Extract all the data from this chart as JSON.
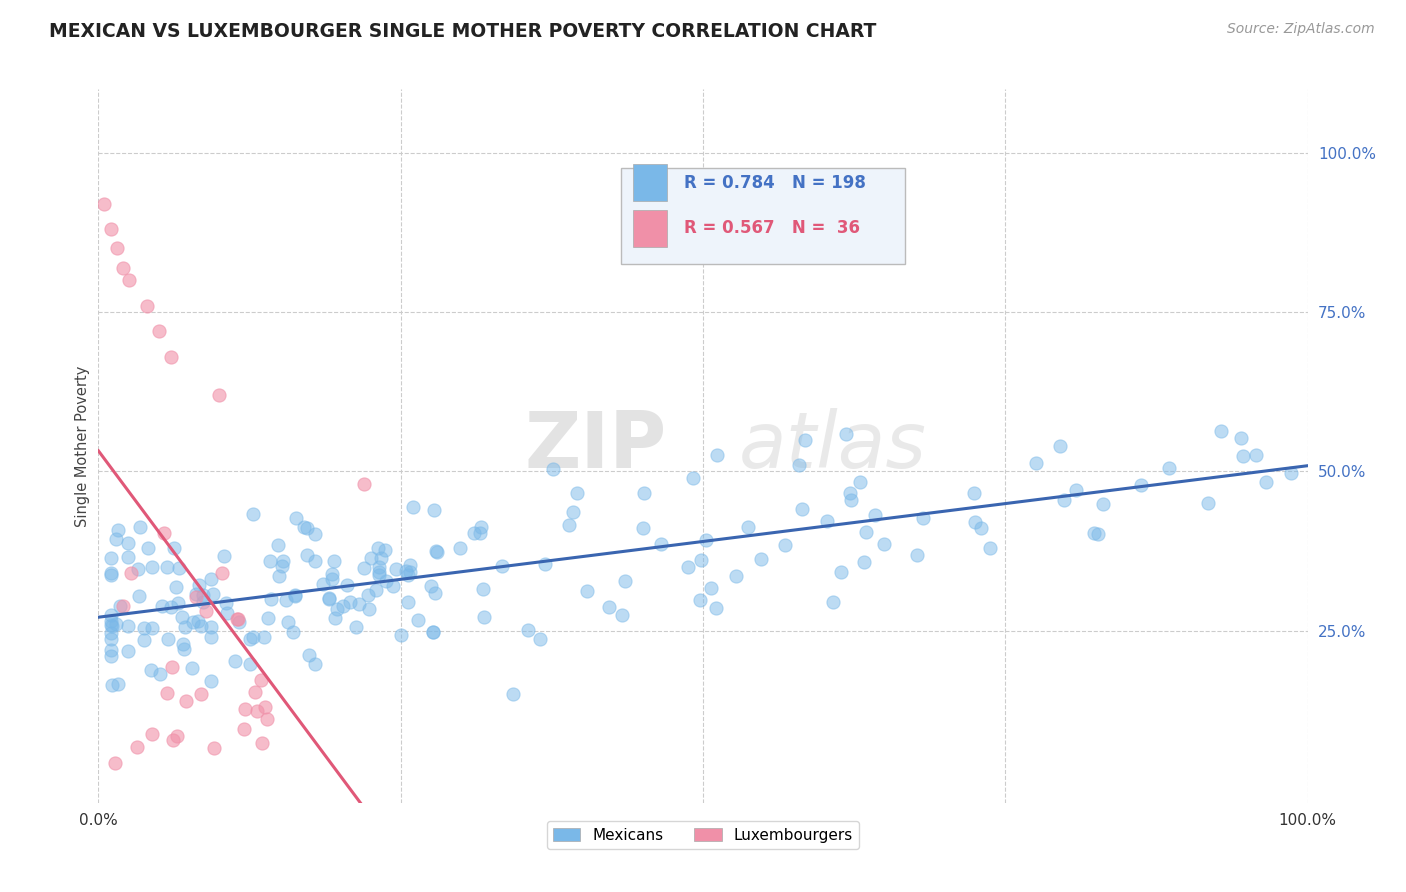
{
  "title": "MEXICAN VS LUXEMBOURGER SINGLE MOTHER POVERTY CORRELATION CHART",
  "source": "Source: ZipAtlas.com",
  "ylabel": "Single Mother Poverty",
  "xlim": [
    0.0,
    1.0
  ],
  "ylim": [
    -0.02,
    1.1
  ],
  "y_tick_vals": [
    0.25,
    0.5,
    0.75,
    1.0
  ],
  "y_tick_labels": [
    "25.0%",
    "50.0%",
    "75.0%",
    "100.0%"
  ],
  "stat_box": {
    "blue_R": "0.784",
    "blue_N": "198",
    "pink_R": "0.567",
    "pink_N": " 36",
    "text_blue": "#4472C4",
    "text_pink": "#E05878",
    "box_facecolor": "#EEF4FB",
    "box_edgecolor": "#BBBBBB"
  },
  "watermark": "ZIPatlas",
  "background_color": "#FFFFFF",
  "grid_color": "#CCCCCC",
  "scatter_blue_color": "#7AB8E8",
  "scatter_pink_color": "#F090A8",
  "line_blue_color": "#3A65B0",
  "line_pink_color": "#E05878",
  "legend_blue_label": "Mexicans",
  "legend_pink_label": "Luxembourgers",
  "right_tick_color": "#4472C4"
}
